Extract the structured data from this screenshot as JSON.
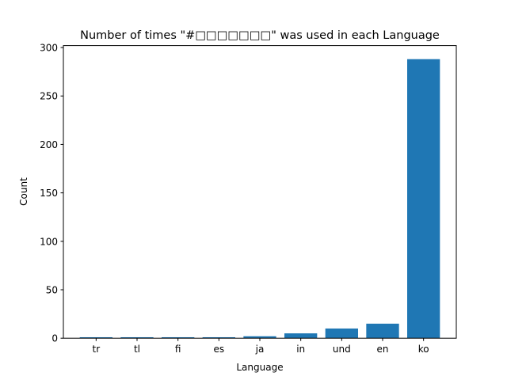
{
  "chart_data": {
    "type": "bar",
    "title": "Number of times \"#□□□□□□□\" was used in each Language",
    "xlabel": "Language",
    "ylabel": "Count",
    "categories": [
      "tr",
      "tl",
      "fi",
      "es",
      "ja",
      "in",
      "und",
      "en",
      "ko"
    ],
    "values": [
      1,
      1,
      1,
      1,
      2,
      5,
      10,
      15,
      288
    ],
    "ylim": [
      0,
      302
    ],
    "yticks": [
      0,
      50,
      100,
      150,
      200,
      250,
      300
    ],
    "grid": false,
    "bar_color": "#1f77b4"
  }
}
